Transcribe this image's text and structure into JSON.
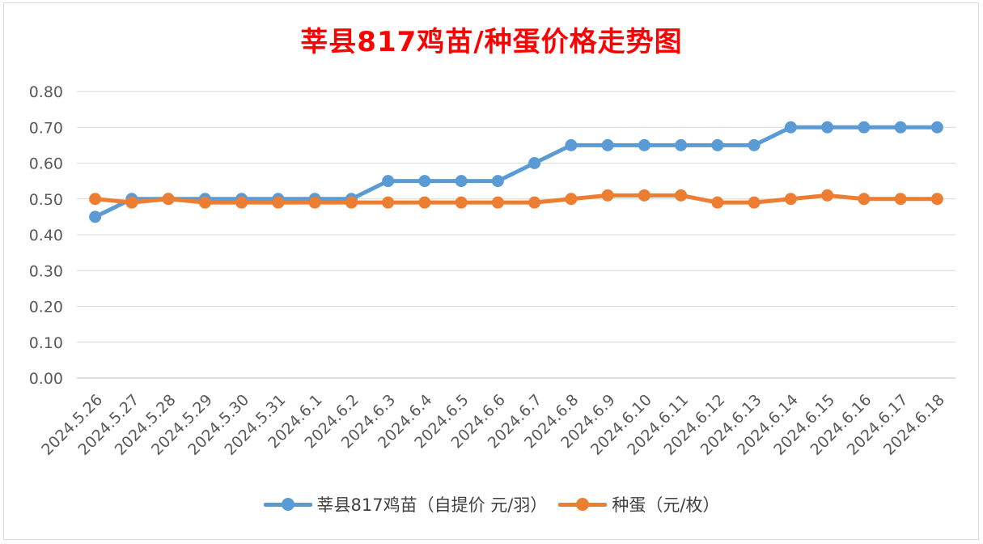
{
  "chart_data": {
    "type": "line",
    "title": "莘县817鸡苗/种蛋价格走势图",
    "title_color": "#ff0000",
    "categories": [
      "2024.5.26",
      "2024.5.27",
      "2024.5.28",
      "2024.5.29",
      "2024.5.30",
      "2024.5.31",
      "2024.6.1",
      "2024.6.2",
      "2024.6.3",
      "2024.6.4",
      "2024.6.5",
      "2024.6.6",
      "2024.6.7",
      "2024.6.8",
      "2024.6.9",
      "2024.6.10",
      "2024.6.11",
      "2024.6.12",
      "2024.6.13",
      "2024.6.14",
      "2024.6.15",
      "2024.6.16",
      "2024.6.17",
      "2024.6.18"
    ],
    "series": [
      {
        "name": "莘县817鸡苗（自提价 元/羽）",
        "color": "#5b9bd5",
        "values": [
          0.45,
          0.5,
          0.5,
          0.5,
          0.5,
          0.5,
          0.5,
          0.5,
          0.55,
          0.55,
          0.55,
          0.55,
          0.6,
          0.65,
          0.65,
          0.65,
          0.65,
          0.65,
          0.65,
          0.7,
          0.7,
          0.7,
          0.7,
          0.7
        ]
      },
      {
        "name": "种蛋（元/枚）",
        "color": "#ed7d31",
        "values": [
          0.5,
          0.49,
          0.5,
          0.49,
          0.49,
          0.49,
          0.49,
          0.49,
          0.49,
          0.49,
          0.49,
          0.49,
          0.49,
          0.5,
          0.51,
          0.51,
          0.51,
          0.49,
          0.49,
          0.5,
          0.51,
          0.5,
          0.5,
          0.5
        ]
      }
    ],
    "ylim": [
      0,
      0.8
    ],
    "yticks": [
      "0.00",
      "0.10",
      "0.20",
      "0.30",
      "0.40",
      "0.50",
      "0.60",
      "0.70",
      "0.80"
    ],
    "xlabel": "",
    "ylabel": "",
    "grid": true,
    "legend_position": "bottom"
  }
}
